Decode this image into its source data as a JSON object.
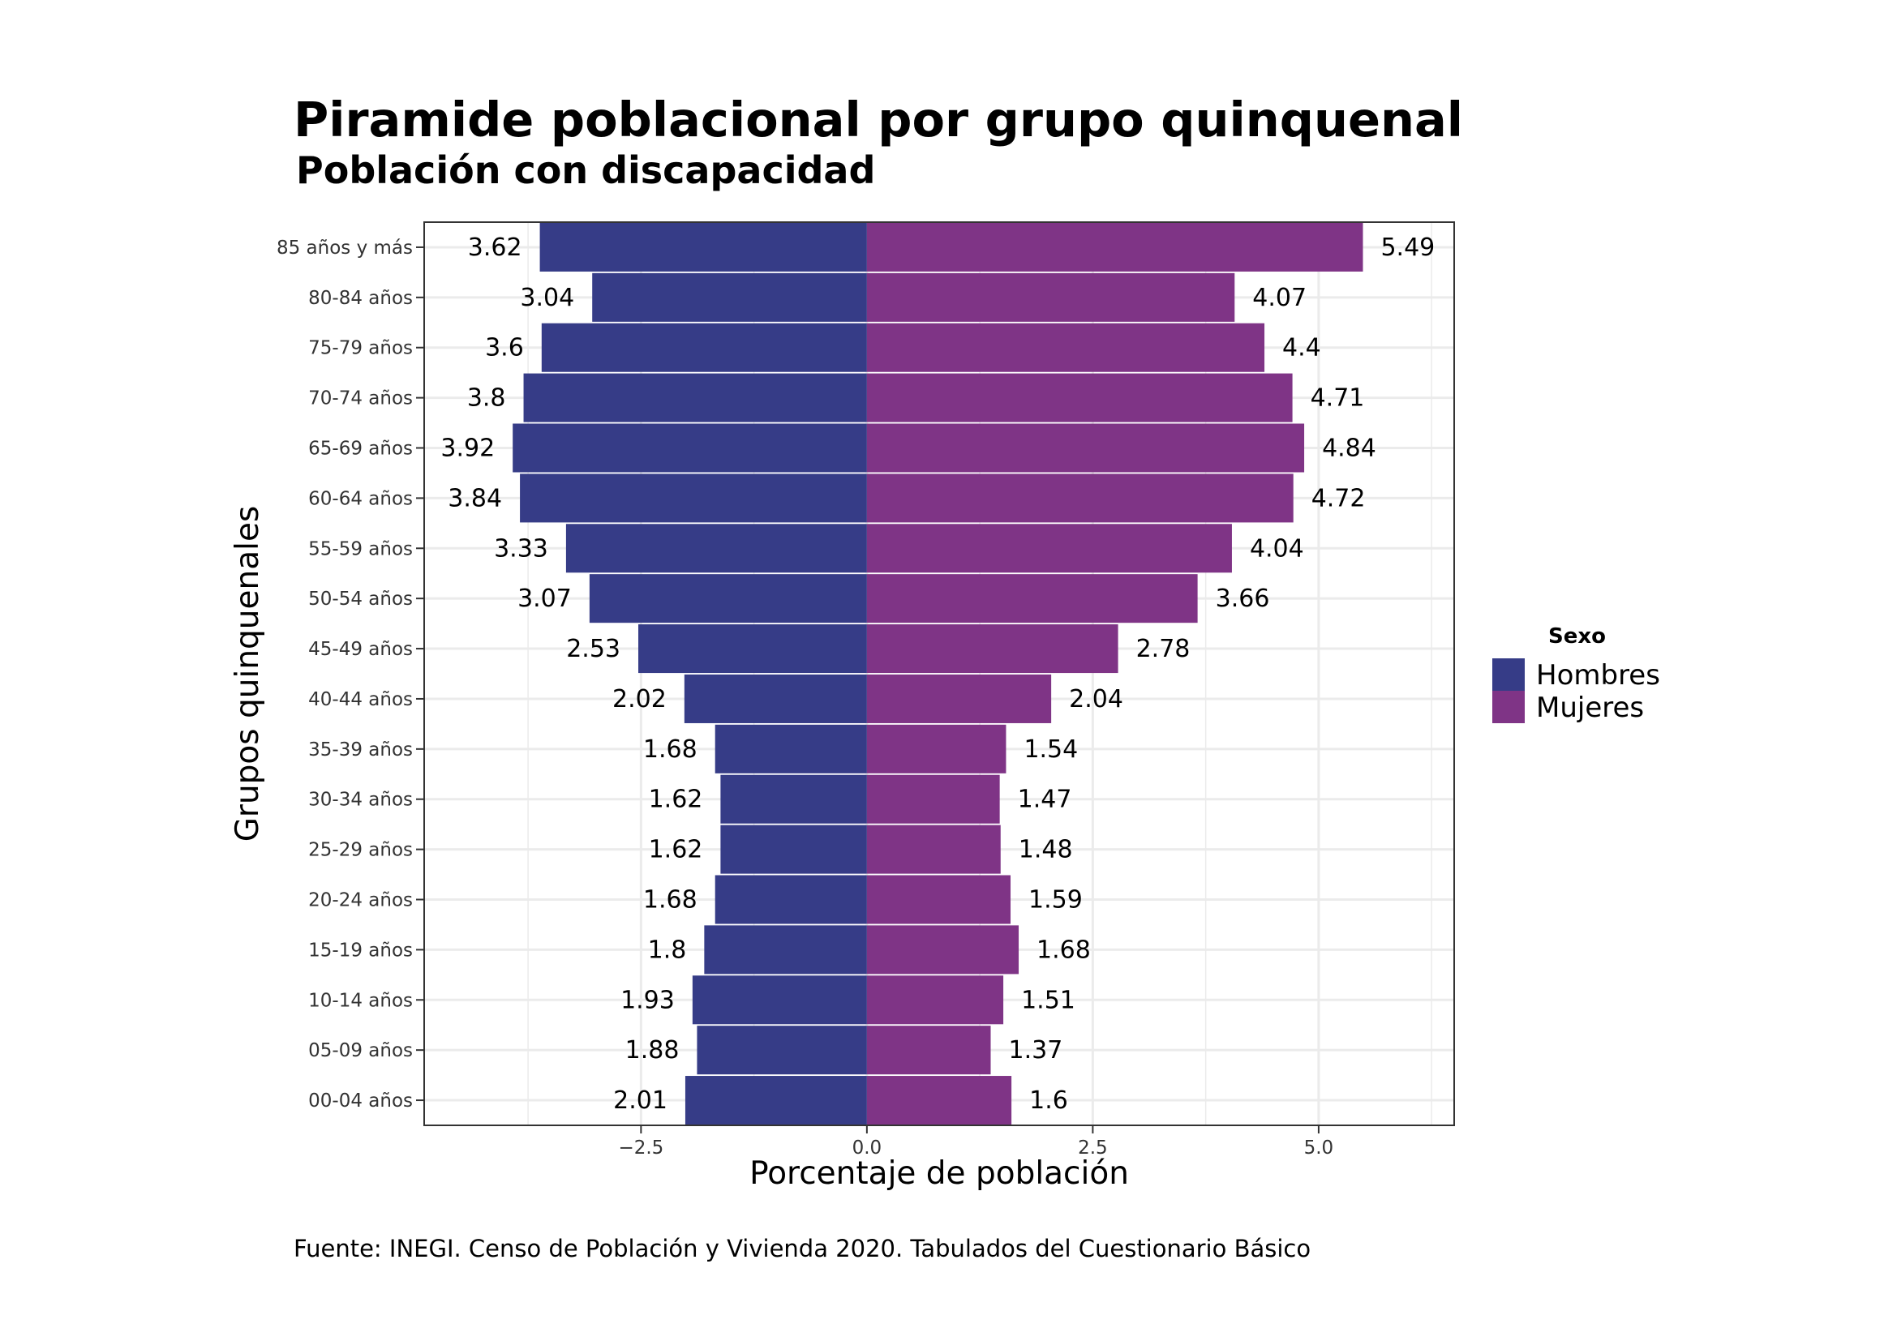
{
  "chart_data": {
    "type": "bar",
    "orientation": "horizontal-pyramid",
    "title": "Piramide poblacional por grupo quinquenal",
    "subtitle": "Población con discapacidad",
    "xlabel": "Porcentaje de población",
    "ylabel": "Grupos quinquenales",
    "caption": "Fuente: INEGI. Censo de Población y Vivienda 2020. Tabulados del Cuestionario Básico",
    "xlim": [
      -4.9,
      6.5
    ],
    "xticks": [
      -2.5,
      0.0,
      2.5,
      5.0
    ],
    "xtick_labels": [
      "−2.5",
      "0.0",
      "2.5",
      "5.0"
    ],
    "grid": true,
    "legend": {
      "title": "Sexo",
      "position": "right"
    },
    "categories": [
      "85 años y más",
      "80-84 años",
      "75-79 años",
      "70-74 años",
      "65-69 años",
      "60-64 años",
      "55-59 años",
      "50-54 años",
      "45-49 años",
      "40-44 años",
      "35-39 años",
      "30-34 años",
      "25-29 años",
      "20-24 años",
      "15-19 años",
      "10-14 años",
      "05-09 años",
      "00-04 años"
    ],
    "series": [
      {
        "name": "Hombres",
        "color": "#363C87",
        "side": "left",
        "values": [
          3.62,
          3.04,
          3.6,
          3.8,
          3.92,
          3.84,
          3.33,
          3.07,
          2.53,
          2.02,
          1.68,
          1.62,
          1.62,
          1.68,
          1.8,
          1.93,
          1.88,
          2.01
        ]
      },
      {
        "name": "Mujeres",
        "color": "#7F3486",
        "side": "right",
        "values": [
          5.49,
          4.07,
          4.4,
          4.71,
          4.84,
          4.72,
          4.04,
          3.66,
          2.78,
          2.04,
          1.54,
          1.47,
          1.48,
          1.59,
          1.68,
          1.51,
          1.37,
          1.6
        ]
      }
    ]
  }
}
